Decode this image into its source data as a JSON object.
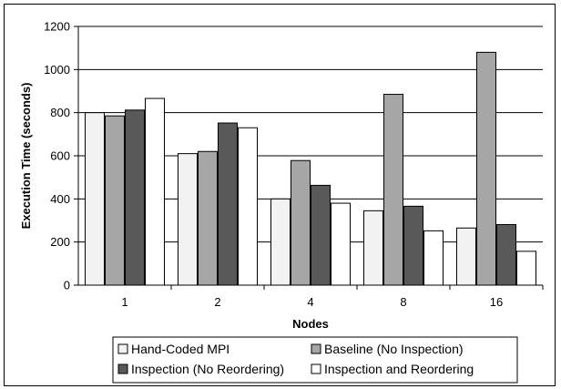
{
  "chart_data": {
    "type": "bar",
    "title": "",
    "xlabel": "Nodes",
    "ylabel": "Execution Time (seconds)",
    "ylim": [
      0,
      1200
    ],
    "yticks": [
      "0",
      "200",
      "400",
      "600",
      "800",
      "1000",
      "1200"
    ],
    "categories": [
      "1",
      "2",
      "4",
      "8",
      "16"
    ],
    "grid": true,
    "legend_position": "bottom",
    "series": [
      {
        "name": "Hand-Coded MPI",
        "color": "#f2f2f2",
        "values": [
          800,
          610,
          400,
          345,
          265
        ]
      },
      {
        "name": "Baseline (No Inspection)",
        "color": "#a6a6a6",
        "values": [
          785,
          620,
          578,
          885,
          1080
        ]
      },
      {
        "name": "Inspection (No Reordering)",
        "color": "#595959",
        "values": [
          812,
          752,
          463,
          366,
          281
        ]
      },
      {
        "name": "Inspection and Reordering",
        "color": "#ffffff",
        "values": [
          866,
          730,
          380,
          252,
          157
        ]
      }
    ]
  }
}
